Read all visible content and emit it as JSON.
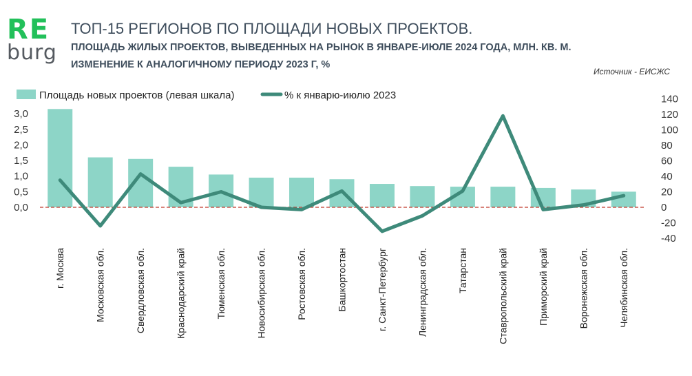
{
  "logo": {
    "line1": "RE",
    "line2": "burg"
  },
  "title": "ТОП-15 РЕГИОНОВ ПО ПЛОЩАДИ НОВЫХ ПРОЕКТОВ.",
  "subtitle_line1": "ПЛОЩАДЬ ЖИЛЫХ ПРОЕКТОВ, ВЫВЕДЕННЫХ НА РЫНОК В ЯНВАРЕ-ИЮЛЕ 2024 ГОДА, МЛН. КВ. М.",
  "subtitle_line2": "ИЗМЕНЕНИЕ К АНАЛОГИЧНОМУ ПЕРИОДУ 2023 Г, %",
  "source": "Источник - ЕИСЖС",
  "colors": {
    "bar": "#8dd5c7",
    "line": "#3e8a7a",
    "zero_line": "#c0392b",
    "text": "#3f4f60"
  },
  "chart_data": {
    "type": "bar",
    "categories": [
      "г. Москва",
      "Московская обл.",
      "Свердловская обл.",
      "Краснодарский край",
      "Тюменская обл.",
      "Новосибирская обл.",
      "Ростовская обл.",
      "Башкортостан",
      "г. Санкт-Петербург",
      "Ленинградская обл.",
      "Татарстан",
      "Ставропольский край",
      "Приморский край",
      "Воронежская обл.",
      "Челябинская обл."
    ],
    "series": [
      {
        "name": "Площадь новых проектов (левая шкала)",
        "type": "bar",
        "axis": "left",
        "values": [
          3.15,
          1.6,
          1.55,
          1.3,
          1.05,
          0.95,
          0.95,
          0.9,
          0.75,
          0.68,
          0.66,
          0.66,
          0.62,
          0.57,
          0.5
        ]
      },
      {
        "name": "% к январю-июлю 2023",
        "type": "line",
        "axis": "right",
        "values": [
          35,
          -24,
          43,
          6,
          20,
          0,
          -3,
          21,
          -31,
          -11,
          21,
          118,
          -3,
          3,
          15
        ]
      }
    ],
    "y_left": {
      "min": 0,
      "max": 3.0,
      "ticks": [
        "0,0",
        "0,5",
        "1,0",
        "1,5",
        "2,0",
        "2,5",
        "3,0"
      ]
    },
    "y_right": {
      "min": -40,
      "max": 140,
      "ticks": [
        "-40",
        "-20",
        "0",
        "20",
        "40",
        "60",
        "80",
        "100",
        "120",
        "140"
      ]
    },
    "legend_position": "top-left",
    "grid": false
  }
}
